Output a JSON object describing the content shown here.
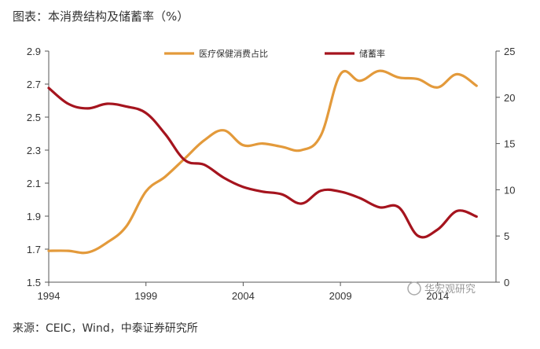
{
  "title": "图表：本消费结构及储蓄率（%）",
  "source": "来源：CEIC，Wind，中泰证券研究所",
  "watermark": "华宏观研究",
  "colors": {
    "medical": "#E39A3B",
    "savings": "#A5141E",
    "axis": "#555555"
  },
  "chart_data": {
    "type": "line",
    "x_ticks": [
      "1994",
      "1999",
      "2004",
      "2009",
      "2014"
    ],
    "xlim": [
      1994,
      2017
    ],
    "y_left": {
      "ticks": [
        "1.5",
        "1.7",
        "1.9",
        "2.1",
        "2.3",
        "2.5",
        "2.7",
        "2.9"
      ],
      "ylim": [
        1.5,
        2.9
      ]
    },
    "y_right": {
      "ticks": [
        "0",
        "5",
        "10",
        "15",
        "20",
        "25"
      ],
      "ylim": [
        0,
        25
      ]
    },
    "legend_position": "top",
    "series": [
      {
        "name": "医疗保健消费占比",
        "axis": "left",
        "color": "#E39A3B",
        "x": [
          1994,
          1995,
          1996,
          1997,
          1998,
          1999,
          2000,
          2001,
          2002,
          2003,
          2004,
          2005,
          2006,
          2007,
          2008,
          2009,
          2010,
          2011,
          2012,
          2013,
          2014,
          2015,
          2016
        ],
        "values": [
          1.69,
          1.69,
          1.68,
          1.74,
          1.84,
          2.05,
          2.14,
          2.25,
          2.36,
          2.42,
          2.33,
          2.34,
          2.32,
          2.3,
          2.39,
          2.76,
          2.72,
          2.78,
          2.74,
          2.73,
          2.68,
          2.76,
          2.69
        ]
      },
      {
        "name": "储蓄率",
        "axis": "right",
        "color": "#A5141E",
        "x": [
          1994,
          1995,
          1996,
          1997,
          1998,
          1999,
          2000,
          2001,
          2002,
          2003,
          2004,
          2005,
          2006,
          2007,
          2008,
          2009,
          2010,
          2011,
          2012,
          2013,
          2014,
          2015,
          2016
        ],
        "values": [
          21.0,
          19.3,
          18.8,
          19.3,
          19.0,
          18.3,
          16.0,
          13.2,
          12.7,
          11.3,
          10.3,
          9.8,
          9.5,
          8.5,
          9.9,
          9.8,
          9.1,
          8.1,
          8.1,
          5.0,
          5.7,
          7.7,
          7.1
        ]
      }
    ]
  }
}
